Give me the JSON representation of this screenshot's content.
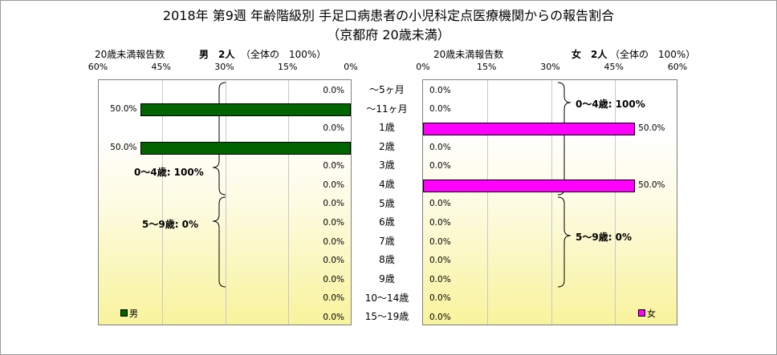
{
  "chart_data": {
    "type": "bar",
    "orientation": "horizontal-butterfly",
    "title": "2018年 第9週 年齢階級別 手足口病患者の小児科定点医療機関からの報告割合",
    "subtitle": "（京都府 20歳未満）",
    "categories": [
      "～5ヶ月",
      "～11ヶ月",
      "1歳",
      "2歳",
      "3歳",
      "4歳",
      "5歳",
      "6歳",
      "7歳",
      "8歳",
      "9歳",
      "10～14歳",
      "15～19歳"
    ],
    "xlim": [
      0,
      60
    ],
    "xticks": [
      "0%",
      "15%",
      "30%",
      "45%",
      "60%"
    ],
    "grid": true,
    "panels": [
      {
        "side": "left",
        "name": "男",
        "header_label": "20歳未満報告数",
        "header_count": "男　2人",
        "header_total": "（全体の　100%）",
        "color": "#006400",
        "values": [
          0,
          50,
          0,
          50,
          0,
          0,
          0,
          0,
          0,
          0,
          0,
          0,
          0
        ],
        "labels": [
          "0.0%",
          "50.0%",
          "0.0%",
          "50.0%",
          "0.0%",
          "0.0%",
          "0.0%",
          "0.0%",
          "0.0%",
          "0.0%",
          "0.0%",
          "0.0%",
          "0.0%"
        ],
        "group_labels": [
          "0～4歳: 100%",
          "5～9歳: 0%"
        ],
        "legend_position": "bottom-left"
      },
      {
        "side": "right",
        "name": "女",
        "header_label": "20歳未満報告数",
        "header_count": "女　2人",
        "header_total": "（全体の　100%）",
        "color": "#ff00ff",
        "values": [
          0,
          0,
          50,
          0,
          0,
          50,
          0,
          0,
          0,
          0,
          0,
          0,
          0
        ],
        "labels": [
          "0.0%",
          "0.0%",
          "50.0%",
          "0.0%",
          "0.0%",
          "50.0%",
          "0.0%",
          "0.0%",
          "0.0%",
          "0.0%",
          "0.0%",
          "0.0%",
          "0.0%"
        ],
        "group_labels": [
          "0～4歳: 100%",
          "5～9歳: 0%"
        ],
        "legend_position": "bottom-right"
      }
    ]
  }
}
